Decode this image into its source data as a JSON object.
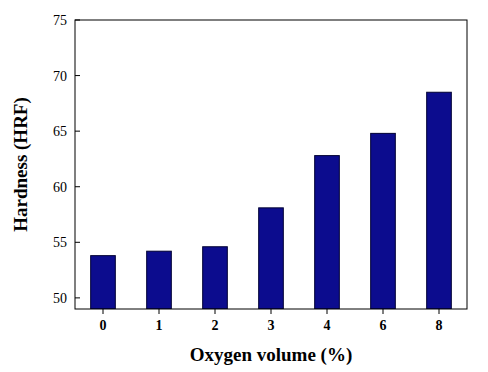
{
  "chart_data": {
    "type": "bar",
    "x_label": "Oxygen volume (%)",
    "y_label": "Hardness (HRF)",
    "categories": [
      "0",
      "1",
      "2",
      "3",
      "4",
      "6",
      "8"
    ],
    "values": [
      53.8,
      54.2,
      54.6,
      58.1,
      62.8,
      64.8,
      68.5
    ],
    "color": "#0c0c8e",
    "ylim": [
      49,
      75
    ],
    "yticks": [
      50,
      55,
      60,
      65,
      70,
      75
    ],
    "grid": false
  }
}
